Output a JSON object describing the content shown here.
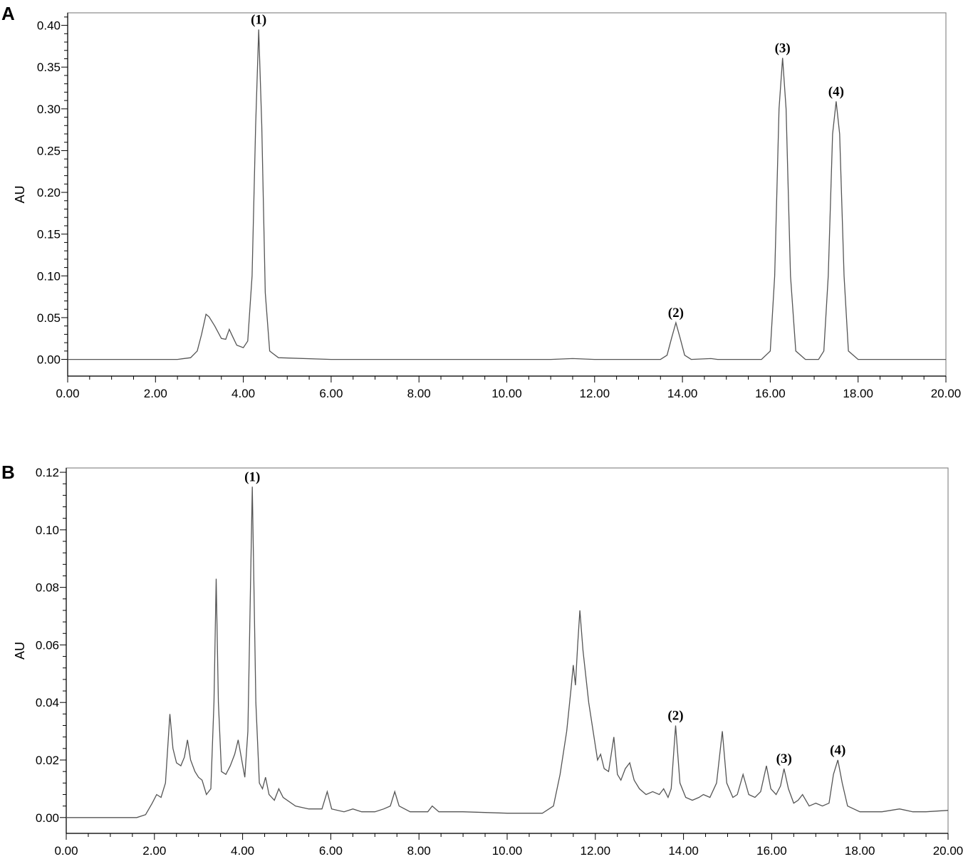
{
  "chart_data": [
    {
      "panel": "A",
      "type": "line",
      "ylabel": "AU",
      "xlim": [
        0,
        20
      ],
      "ylim": [
        -0.02,
        0.415
      ],
      "x_ticks": [
        "0.00",
        "2.00",
        "4.00",
        "6.00",
        "8.00",
        "10.00",
        "12.00",
        "14.00",
        "16.00",
        "18.00",
        "20.00"
      ],
      "y_ticks": [
        "0.00",
        "0.05",
        "0.10",
        "0.15",
        "0.20",
        "0.25",
        "0.30",
        "0.35",
        "0.40"
      ],
      "peaks_labeled": [
        {
          "label": "(1)",
          "x": 4.35,
          "y": 0.395
        },
        {
          "label": "(2)",
          "x": 13.85,
          "y": 0.044
        },
        {
          "label": "(3)",
          "x": 16.28,
          "y": 0.361
        },
        {
          "label": "(4)",
          "x": 17.5,
          "y": 0.309
        }
      ],
      "series": [
        {
          "points": [
            [
              0,
              0
            ],
            [
              2.5,
              0
            ],
            [
              2.8,
              0.002
            ],
            [
              2.95,
              0.01
            ],
            [
              3.05,
              0.03
            ],
            [
              3.15,
              0.054
            ],
            [
              3.22,
              0.051
            ],
            [
              3.35,
              0.04
            ],
            [
              3.5,
              0.025
            ],
            [
              3.6,
              0.024
            ],
            [
              3.68,
              0.036
            ],
            [
              3.75,
              0.028
            ],
            [
              3.85,
              0.017
            ],
            [
              4.0,
              0.014
            ],
            [
              4.1,
              0.022
            ],
            [
              4.2,
              0.1
            ],
            [
              4.28,
              0.28
            ],
            [
              4.35,
              0.395
            ],
            [
              4.42,
              0.28
            ],
            [
              4.5,
              0.08
            ],
            [
              4.6,
              0.01
            ],
            [
              4.8,
              0.002
            ],
            [
              6,
              0
            ],
            [
              11,
              0
            ],
            [
              11.5,
              0.001
            ],
            [
              12,
              0
            ],
            [
              13.5,
              0
            ],
            [
              13.65,
              0.005
            ],
            [
              13.75,
              0.025
            ],
            [
              13.85,
              0.044
            ],
            [
              13.95,
              0.025
            ],
            [
              14.05,
              0.005
            ],
            [
              14.2,
              0
            ],
            [
              14.65,
              0.001
            ],
            [
              14.8,
              0
            ],
            [
              15.8,
              0
            ],
            [
              16.0,
              0.01
            ],
            [
              16.1,
              0.1
            ],
            [
              16.2,
              0.3
            ],
            [
              16.28,
              0.361
            ],
            [
              16.36,
              0.3
            ],
            [
              16.46,
              0.1
            ],
            [
              16.58,
              0.01
            ],
            [
              16.8,
              0
            ],
            [
              17.1,
              0
            ],
            [
              17.22,
              0.01
            ],
            [
              17.32,
              0.1
            ],
            [
              17.42,
              0.27
            ],
            [
              17.5,
              0.309
            ],
            [
              17.58,
              0.27
            ],
            [
              17.68,
              0.1
            ],
            [
              17.78,
              0.01
            ],
            [
              18.0,
              0
            ],
            [
              20,
              0
            ]
          ]
        }
      ]
    },
    {
      "panel": "B",
      "type": "line",
      "ylabel": "AU",
      "xlim": [
        0,
        20
      ],
      "ylim": [
        -0.0055,
        0.1215
      ],
      "x_ticks": [
        "0.00",
        "2.00",
        "4.00",
        "6.00",
        "8.00",
        "10.00",
        "12.00",
        "14.00",
        "16.00",
        "18.00",
        "20.00"
      ],
      "y_ticks": [
        "0.00",
        "0.02",
        "0.04",
        "0.06",
        "0.08",
        "0.10",
        "0.12"
      ],
      "peaks_labeled": [
        {
          "label": "(1)",
          "x": 4.22,
          "y": 0.115
        },
        {
          "label": "(2)",
          "x": 13.82,
          "y": 0.032
        },
        {
          "label": "(3)",
          "x": 16.28,
          "y": 0.017
        },
        {
          "label": "(4)",
          "x": 17.5,
          "y": 0.02
        }
      ],
      "series": [
        {
          "points": [
            [
              0,
              0
            ],
            [
              1.6,
              0
            ],
            [
              1.8,
              0.001
            ],
            [
              1.95,
              0.005
            ],
            [
              2.05,
              0.008
            ],
            [
              2.15,
              0.007
            ],
            [
              2.25,
              0.012
            ],
            [
              2.35,
              0.036
            ],
            [
              2.42,
              0.024
            ],
            [
              2.5,
              0.019
            ],
            [
              2.6,
              0.018
            ],
            [
              2.68,
              0.021
            ],
            [
              2.75,
              0.027
            ],
            [
              2.82,
              0.02
            ],
            [
              2.92,
              0.016
            ],
            [
              3.0,
              0.014
            ],
            [
              3.08,
              0.013
            ],
            [
              3.18,
              0.008
            ],
            [
              3.28,
              0.01
            ],
            [
              3.35,
              0.04
            ],
            [
              3.4,
              0.083
            ],
            [
              3.45,
              0.04
            ],
            [
              3.52,
              0.016
            ],
            [
              3.62,
              0.015
            ],
            [
              3.72,
              0.018
            ],
            [
              3.82,
              0.022
            ],
            [
              3.9,
              0.027
            ],
            [
              3.98,
              0.02
            ],
            [
              4.05,
              0.014
            ],
            [
              4.12,
              0.03
            ],
            [
              4.22,
              0.115
            ],
            [
              4.3,
              0.04
            ],
            [
              4.38,
              0.012
            ],
            [
              4.45,
              0.01
            ],
            [
              4.52,
              0.014
            ],
            [
              4.6,
              0.008
            ],
            [
              4.72,
              0.006
            ],
            [
              4.82,
              0.01
            ],
            [
              4.92,
              0.007
            ],
            [
              5.2,
              0.004
            ],
            [
              5.5,
              0.003
            ],
            [
              5.8,
              0.003
            ],
            [
              5.92,
              0.009
            ],
            [
              6.02,
              0.003
            ],
            [
              6.3,
              0.002
            ],
            [
              6.5,
              0.003
            ],
            [
              6.7,
              0.002
            ],
            [
              7.0,
              0.002
            ],
            [
              7.2,
              0.003
            ],
            [
              7.35,
              0.004
            ],
            [
              7.45,
              0.009
            ],
            [
              7.55,
              0.004
            ],
            [
              7.8,
              0.002
            ],
            [
              8.2,
              0.002
            ],
            [
              8.3,
              0.004
            ],
            [
              8.45,
              0.002
            ],
            [
              9.0,
              0.002
            ],
            [
              10.0,
              0.0015
            ],
            [
              10.8,
              0.0015
            ],
            [
              11.05,
              0.004
            ],
            [
              11.2,
              0.015
            ],
            [
              11.35,
              0.03
            ],
            [
              11.45,
              0.045
            ],
            [
              11.5,
              0.053
            ],
            [
              11.55,
              0.046
            ],
            [
              11.6,
              0.06
            ],
            [
              11.65,
              0.072
            ],
            [
              11.72,
              0.058
            ],
            [
              11.85,
              0.04
            ],
            [
              11.95,
              0.03
            ],
            [
              12.05,
              0.02
            ],
            [
              12.12,
              0.022
            ],
            [
              12.2,
              0.017
            ],
            [
              12.3,
              0.016
            ],
            [
              12.42,
              0.028
            ],
            [
              12.5,
              0.015
            ],
            [
              12.58,
              0.013
            ],
            [
              12.68,
              0.017
            ],
            [
              12.78,
              0.019
            ],
            [
              12.88,
              0.013
            ],
            [
              13.0,
              0.01
            ],
            [
              13.15,
              0.008
            ],
            [
              13.3,
              0.009
            ],
            [
              13.45,
              0.008
            ],
            [
              13.55,
              0.01
            ],
            [
              13.65,
              0.007
            ],
            [
              13.72,
              0.01
            ],
            [
              13.82,
              0.032
            ],
            [
              13.92,
              0.012
            ],
            [
              14.05,
              0.007
            ],
            [
              14.2,
              0.006
            ],
            [
              14.35,
              0.007
            ],
            [
              14.45,
              0.008
            ],
            [
              14.6,
              0.007
            ],
            [
              14.75,
              0.012
            ],
            [
              14.88,
              0.03
            ],
            [
              14.98,
              0.012
            ],
            [
              15.12,
              0.007
            ],
            [
              15.22,
              0.008
            ],
            [
              15.35,
              0.015
            ],
            [
              15.48,
              0.008
            ],
            [
              15.62,
              0.007
            ],
            [
              15.75,
              0.009
            ],
            [
              15.88,
              0.018
            ],
            [
              15.98,
              0.01
            ],
            [
              16.1,
              0.008
            ],
            [
              16.2,
              0.011
            ],
            [
              16.28,
              0.017
            ],
            [
              16.38,
              0.01
            ],
            [
              16.5,
              0.005
            ],
            [
              16.6,
              0.006
            ],
            [
              16.7,
              0.008
            ],
            [
              16.85,
              0.004
            ],
            [
              17.0,
              0.005
            ],
            [
              17.15,
              0.004
            ],
            [
              17.3,
              0.005
            ],
            [
              17.4,
              0.015
            ],
            [
              17.5,
              0.02
            ],
            [
              17.6,
              0.012
            ],
            [
              17.72,
              0.004
            ],
            [
              18.0,
              0.002
            ],
            [
              18.5,
              0.002
            ],
            [
              18.9,
              0.003
            ],
            [
              19.2,
              0.002
            ],
            [
              19.5,
              0.002
            ],
            [
              20,
              0.0025
            ]
          ]
        }
      ]
    }
  ]
}
